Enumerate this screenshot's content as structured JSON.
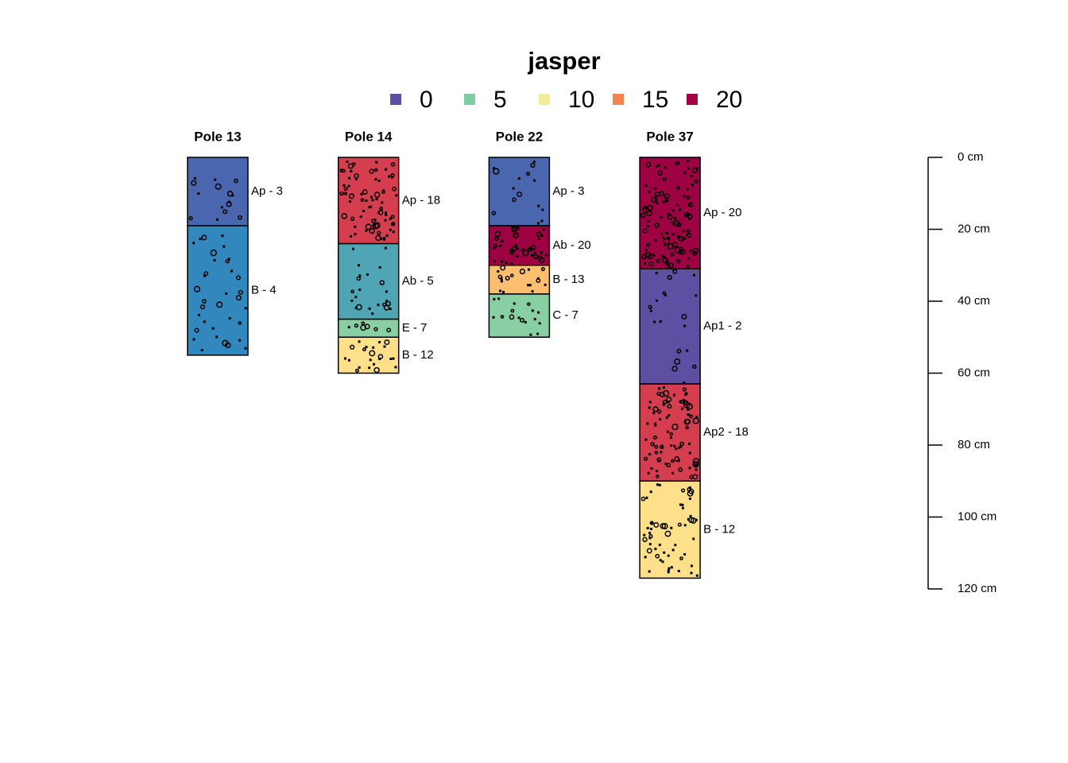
{
  "chart_data": {
    "type": "soil-profile",
    "legend_title": "jasper",
    "legend": [
      {
        "value": 0,
        "color": "#5E4FA2"
      },
      {
        "value": 5,
        "color": "#7FCBA4"
      },
      {
        "value": 10,
        "color": "#F4EC96"
      },
      {
        "value": 15,
        "color": "#F4834C"
      },
      {
        "value": 20,
        "color": "#A3004A"
      }
    ],
    "profiles": [
      {
        "name": "Pole 13",
        "horizons": [
          {
            "label": "Ap - 3",
            "value": 3,
            "top": 0,
            "bottom": 19,
            "color": "#4A66AE"
          },
          {
            "label": "B - 4",
            "value": 4,
            "top": 19,
            "bottom": 55,
            "color": "#3288BD"
          }
        ]
      },
      {
        "name": "Pole 14",
        "horizons": [
          {
            "label": "Ap - 18",
            "value": 18,
            "top": 0,
            "bottom": 24,
            "color": "#D53E4F"
          },
          {
            "label": "Ab - 5",
            "value": 5,
            "top": 24,
            "bottom": 45,
            "color": "#4FA5B3"
          },
          {
            "label": "E - 7",
            "value": 7,
            "top": 45,
            "bottom": 50,
            "color": "#88D0A4"
          },
          {
            "label": "B - 12",
            "value": 12,
            "top": 50,
            "bottom": 60,
            "color": "#FEE08B"
          }
        ]
      },
      {
        "name": "Pole 22",
        "horizons": [
          {
            "label": "Ap - 3",
            "value": 3,
            "top": 0,
            "bottom": 19,
            "color": "#4A66AE"
          },
          {
            "label": "Ab - 20",
            "value": 20,
            "top": 19,
            "bottom": 30,
            "color": "#9E0142"
          },
          {
            "label": "B - 13",
            "value": 13,
            "top": 30,
            "bottom": 38,
            "color": "#FDBF6F"
          },
          {
            "label": "C - 7",
            "value": 7,
            "top": 38,
            "bottom": 50,
            "color": "#88D0A4"
          }
        ]
      },
      {
        "name": "Pole 37",
        "horizons": [
          {
            "label": "Ap - 20",
            "value": 20,
            "top": 0,
            "bottom": 31,
            "color": "#9E0142"
          },
          {
            "label": "Ap1 - 2",
            "value": 2,
            "top": 31,
            "bottom": 63,
            "color": "#5E4FA2"
          },
          {
            "label": "Ap2 - 18",
            "value": 18,
            "top": 63,
            "bottom": 90,
            "color": "#D53E4F"
          },
          {
            "label": "B - 12",
            "value": 12,
            "top": 90,
            "bottom": 117,
            "color": "#FEE08B"
          }
        ]
      }
    ],
    "ylim": [
      0,
      120
    ],
    "yticks": [
      {
        "value": 0,
        "label": "0 cm"
      },
      {
        "value": 20,
        "label": "20 cm"
      },
      {
        "value": 40,
        "label": "40 cm"
      },
      {
        "value": 60,
        "label": "60 cm"
      },
      {
        "value": 80,
        "label": "80 cm"
      },
      {
        "value": 100,
        "label": "100 cm"
      },
      {
        "value": 120,
        "label": "120 cm"
      }
    ]
  }
}
